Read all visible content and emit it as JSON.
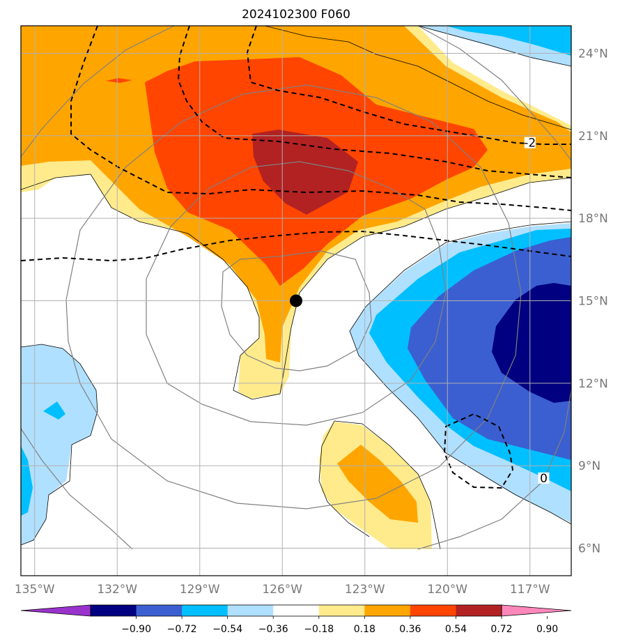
{
  "title": "2024102300 F060",
  "map": {
    "lon_range": [
      -135.5,
      -115.5
    ],
    "lat_range": [
      5,
      25
    ],
    "lat_ticks": [
      {
        "value": 24,
        "label": "24°N"
      },
      {
        "value": 21,
        "label": "21°N"
      },
      {
        "value": 18,
        "label": "18°N"
      },
      {
        "value": 15,
        "label": "15°N"
      },
      {
        "value": 12,
        "label": "12°N"
      },
      {
        "value": 9,
        "label": "9°N"
      },
      {
        "value": 6,
        "label": "6°N"
      }
    ],
    "lon_ticks": [
      {
        "value": -135,
        "label": "135°W"
      },
      {
        "value": -132,
        "label": "132°W"
      },
      {
        "value": -129,
        "label": "129°W"
      },
      {
        "value": -126,
        "label": "126°W"
      },
      {
        "value": -123,
        "label": "123°W"
      },
      {
        "value": -120,
        "label": "120°W"
      },
      {
        "value": -117,
        "label": "117°W"
      }
    ],
    "storm_center": {
      "lon": -125.5,
      "lat": 15.0
    },
    "contour_labels": [
      {
        "text": "-2",
        "lon": -117.0,
        "lat": 20.7
      },
      {
        "text": "0",
        "lon": -116.5,
        "lat": 8.5
      }
    ],
    "grid": true
  },
  "colorbar": {
    "levels": [
      "−0.90",
      "−0.72",
      "−0.54",
      "−0.36",
      "−0.18",
      "0.18",
      "0.36",
      "0.54",
      "0.72",
      "0.90"
    ],
    "colors": [
      "#9933cc",
      "#000080",
      "#3b5fd0",
      "#00bfff",
      "#b0e0ff",
      "#ffffff",
      "#ffeb8c",
      "#ffa500",
      "#ff4500",
      "#b22222",
      "#ff88bb"
    ],
    "orientation": "horizontal",
    "extend": "both"
  },
  "colors": {
    "dashed_contour": "#000000",
    "gray_contour": "#808080",
    "grid": "#b0b0b0",
    "storm_marker": "#000000"
  }
}
